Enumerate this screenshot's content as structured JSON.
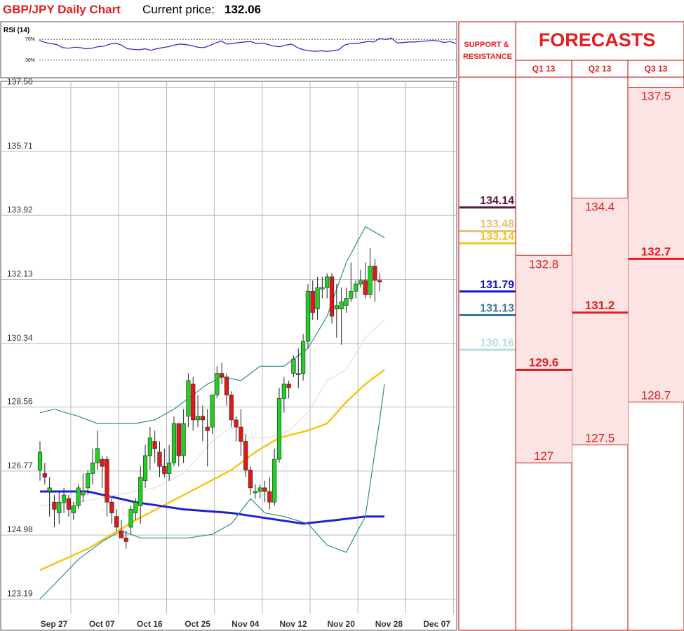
{
  "header": {
    "title": "GBP/JPY Daily Chart",
    "current_price_label": "Current price:",
    "current_price_value": "132.06"
  },
  "rsi": {
    "label": "RSI (14)",
    "levels": [
      "70%",
      "30%"
    ],
    "level_values": [
      70,
      30
    ],
    "values": [
      68,
      64,
      62,
      60,
      54,
      53,
      55,
      54,
      52,
      53,
      56,
      57,
      61,
      63,
      59,
      52,
      51,
      50,
      52,
      49,
      52,
      54,
      56,
      59,
      61,
      60,
      58,
      55,
      54,
      58,
      63,
      67,
      61,
      62,
      64,
      65,
      66,
      62,
      63,
      60,
      57,
      56,
      59,
      61,
      54,
      50,
      48,
      47,
      48,
      47,
      48,
      50,
      59,
      62,
      62,
      64,
      66,
      65,
      72,
      70,
      73,
      63,
      64,
      65,
      65,
      66,
      67,
      68,
      67,
      64,
      66,
      62
    ],
    "ylim": [
      0,
      100
    ]
  },
  "chart_data": {
    "type": "candlestick",
    "title": "GBP/JPY Daily Chart",
    "y_ticks": [
      137.5,
      135.71,
      133.92,
      132.13,
      130.34,
      128.56,
      126.77,
      124.98,
      123.19
    ],
    "y_tick_labels": [
      "137.50",
      "135.71",
      "133.92",
      "132.13",
      "130.34",
      "128.56",
      "126.77",
      "124.98",
      "123.19"
    ],
    "ylim": [
      123.19,
      137.5
    ],
    "x_labels": [
      "Sep 27",
      "Oct 07",
      "Oct 16",
      "Oct 25",
      "Nov 04",
      "Nov 12",
      "Nov 20",
      "Nov 28",
      "Dec 07"
    ],
    "x_label_index": [
      0,
      10,
      20,
      30,
      40,
      50,
      60,
      70,
      80
    ],
    "grid": true,
    "candles": [
      {
        "o": 126.8,
        "h": 127.6,
        "l": 126.5,
        "c": 127.3
      },
      {
        "o": 126.7,
        "h": 127.0,
        "l": 126.4,
        "c": 126.6
      },
      {
        "o": 126.2,
        "h": 126.6,
        "l": 125.5,
        "c": 126.3
      },
      {
        "o": 125.9,
        "h": 126.1,
        "l": 125.2,
        "c": 125.7
      },
      {
        "o": 125.6,
        "h": 126.2,
        "l": 125.3,
        "c": 125.9
      },
      {
        "o": 125.9,
        "h": 126.3,
        "l": 125.6,
        "c": 126.1
      },
      {
        "o": 126.0,
        "h": 126.1,
        "l": 125.5,
        "c": 125.7
      },
      {
        "o": 125.6,
        "h": 125.9,
        "l": 125.4,
        "c": 125.8
      },
      {
        "o": 125.8,
        "h": 126.4,
        "l": 125.7,
        "c": 126.3
      },
      {
        "o": 126.1,
        "h": 126.7,
        "l": 125.9,
        "c": 126.2
      },
      {
        "o": 126.3,
        "h": 126.8,
        "l": 126.1,
        "c": 126.7
      },
      {
        "o": 126.7,
        "h": 127.4,
        "l": 126.4,
        "c": 127.0
      },
      {
        "o": 127.0,
        "h": 127.9,
        "l": 126.8,
        "c": 127.4
      },
      {
        "o": 127.1,
        "h": 127.2,
        "l": 126.3,
        "c": 126.9
      },
      {
        "o": 127.1,
        "h": 127.2,
        "l": 125.5,
        "c": 125.9
      },
      {
        "o": 125.9,
        "h": 126.0,
        "l": 125.3,
        "c": 125.6
      },
      {
        "o": 125.5,
        "h": 125.7,
        "l": 125.1,
        "c": 125.2
      },
      {
        "o": 125.1,
        "h": 125.4,
        "l": 124.9,
        "c": 124.9
      },
      {
        "o": 124.9,
        "h": 125.1,
        "l": 124.6,
        "c": 124.8
      },
      {
        "o": 125.2,
        "h": 125.8,
        "l": 125.0,
        "c": 125.7
      },
      {
        "o": 125.6,
        "h": 126.0,
        "l": 125.4,
        "c": 125.9
      },
      {
        "o": 125.8,
        "h": 126.9,
        "l": 125.3,
        "c": 126.6
      },
      {
        "o": 126.5,
        "h": 127.5,
        "l": 126.3,
        "c": 127.2
      },
      {
        "o": 127.2,
        "h": 128.0,
        "l": 126.8,
        "c": 127.7
      },
      {
        "o": 127.6,
        "h": 127.9,
        "l": 127.0,
        "c": 127.4
      },
      {
        "o": 127.3,
        "h": 127.6,
        "l": 126.6,
        "c": 126.9
      },
      {
        "o": 126.9,
        "h": 127.4,
        "l": 126.6,
        "c": 126.7
      },
      {
        "o": 126.7,
        "h": 127.5,
        "l": 126.5,
        "c": 127.0
      },
      {
        "o": 127.0,
        "h": 128.3,
        "l": 126.9,
        "c": 128.1
      },
      {
        "o": 128.1,
        "h": 128.1,
        "l": 126.9,
        "c": 127.2
      },
      {
        "o": 127.2,
        "h": 128.5,
        "l": 127.0,
        "c": 128.1
      },
      {
        "o": 128.3,
        "h": 129.5,
        "l": 128.0,
        "c": 129.3
      },
      {
        "o": 129.2,
        "h": 129.4,
        "l": 127.9,
        "c": 128.2
      },
      {
        "o": 128.2,
        "h": 128.9,
        "l": 128.0,
        "c": 128.3
      },
      {
        "o": 128.3,
        "h": 128.6,
        "l": 127.6,
        "c": 128.2
      },
      {
        "o": 128.0,
        "h": 128.5,
        "l": 126.9,
        "c": 127.9
      },
      {
        "o": 128.0,
        "h": 128.9,
        "l": 127.8,
        "c": 128.9
      },
      {
        "o": 128.9,
        "h": 129.7,
        "l": 128.8,
        "c": 129.5
      },
      {
        "o": 129.5,
        "h": 129.8,
        "l": 129.2,
        "c": 129.4
      },
      {
        "o": 129.4,
        "h": 129.5,
        "l": 128.6,
        "c": 128.9
      },
      {
        "o": 128.9,
        "h": 129.0,
        "l": 128.0,
        "c": 128.2
      },
      {
        "o": 128.2,
        "h": 128.3,
        "l": 127.6,
        "c": 128.0
      },
      {
        "o": 128.0,
        "h": 128.5,
        "l": 127.2,
        "c": 127.6
      },
      {
        "o": 127.6,
        "h": 127.8,
        "l": 126.6,
        "c": 126.8
      },
      {
        "o": 126.8,
        "h": 126.9,
        "l": 126.1,
        "c": 126.3
      },
      {
        "o": 126.2,
        "h": 126.4,
        "l": 126.0,
        "c": 126.2
      },
      {
        "o": 126.2,
        "h": 126.4,
        "l": 126.0,
        "c": 126.3
      },
      {
        "o": 126.3,
        "h": 126.5,
        "l": 125.9,
        "c": 126.2
      },
      {
        "o": 126.2,
        "h": 126.6,
        "l": 125.7,
        "c": 125.9
      },
      {
        "o": 125.9,
        "h": 127.4,
        "l": 125.8,
        "c": 127.1
      },
      {
        "o": 127.1,
        "h": 129.1,
        "l": 127.0,
        "c": 128.8
      },
      {
        "o": 128.8,
        "h": 129.4,
        "l": 128.4,
        "c": 129.2
      },
      {
        "o": 129.2,
        "h": 129.3,
        "l": 128.8,
        "c": 129.1
      },
      {
        "o": 129.5,
        "h": 130.0,
        "l": 129.4,
        "c": 129.9
      },
      {
        "o": 129.5,
        "h": 130.2,
        "l": 129.1,
        "c": 129.5
      },
      {
        "o": 129.5,
        "h": 130.6,
        "l": 129.3,
        "c": 130.4
      },
      {
        "o": 130.4,
        "h": 132.0,
        "l": 130.2,
        "c": 131.8
      },
      {
        "o": 131.8,
        "h": 132.1,
        "l": 131.0,
        "c": 131.2
      },
      {
        "o": 131.3,
        "h": 132.2,
        "l": 131.0,
        "c": 131.9
      },
      {
        "o": 131.9,
        "h": 132.2,
        "l": 131.6,
        "c": 131.9
      },
      {
        "o": 131.9,
        "h": 132.3,
        "l": 131.6,
        "c": 132.2
      },
      {
        "o": 132.2,
        "h": 132.3,
        "l": 130.9,
        "c": 131.1
      },
      {
        "o": 131.3,
        "h": 132.0,
        "l": 130.5,
        "c": 131.4
      },
      {
        "o": 131.3,
        "h": 131.9,
        "l": 130.3,
        "c": 131.5
      },
      {
        "o": 131.4,
        "h": 131.9,
        "l": 131.2,
        "c": 131.6
      },
      {
        "o": 131.6,
        "h": 132.6,
        "l": 131.5,
        "c": 131.8
      },
      {
        "o": 131.8,
        "h": 132.1,
        "l": 131.6,
        "c": 132.0
      },
      {
        "o": 132.0,
        "h": 132.4,
        "l": 131.9,
        "c": 132.1
      },
      {
        "o": 132.1,
        "h": 132.6,
        "l": 131.6,
        "c": 131.7
      },
      {
        "o": 131.7,
        "h": 133.0,
        "l": 131.6,
        "c": 132.5
      },
      {
        "o": 132.5,
        "h": 132.7,
        "l": 131.5,
        "c": 132.1
      },
      {
        "o": 132.1,
        "h": 132.3,
        "l": 131.8,
        "c": 132.06
      }
    ],
    "series": [
      {
        "name": "",
        "color": "#f5c518",
        "points": [
          [
            0,
            124.0
          ],
          [
            10,
            124.6
          ],
          [
            20,
            125.4
          ],
          [
            30,
            126.1
          ],
          [
            40,
            126.8
          ],
          [
            45,
            127.3
          ],
          [
            50,
            127.7
          ],
          [
            56,
            127.9
          ],
          [
            60,
            128.1
          ],
          [
            64,
            128.7
          ],
          [
            68,
            129.2
          ],
          [
            72,
            129.6
          ]
        ]
      },
      {
        "name": "",
        "color": "#2020d0",
        "points": [
          [
            0,
            126.2
          ],
          [
            10,
            126.2
          ],
          [
            20,
            125.9
          ],
          [
            30,
            125.7
          ],
          [
            40,
            125.6
          ],
          [
            45,
            125.5
          ],
          [
            50,
            125.4
          ],
          [
            55,
            125.3
          ],
          [
            62,
            125.4
          ],
          [
            68,
            125.5
          ],
          [
            72,
            125.5
          ]
        ]
      },
      {
        "name": "",
        "color": "#2a8f8f",
        "points": [
          [
            0,
            128.4
          ],
          [
            3,
            128.5
          ],
          [
            8,
            128.3
          ],
          [
            12,
            128.1
          ],
          [
            16,
            128.1
          ],
          [
            20,
            128.1
          ],
          [
            24,
            128.2
          ],
          [
            28,
            128.5
          ],
          [
            32,
            128.9
          ],
          [
            35,
            129.2
          ],
          [
            38,
            129.4
          ],
          [
            42,
            129.3
          ],
          [
            46,
            129.7
          ],
          [
            51,
            129.7
          ],
          [
            56,
            130.2
          ],
          [
            60,
            131.1
          ],
          [
            64,
            132.6
          ],
          [
            68,
            133.6
          ],
          [
            72,
            133.3
          ]
        ]
      },
      {
        "name": "",
        "color": "#2a8f8f",
        "points": [
          [
            0,
            123.2
          ],
          [
            3,
            123.6
          ],
          [
            8,
            124.3
          ],
          [
            13,
            124.8
          ],
          [
            17,
            125.1
          ],
          [
            21,
            124.9
          ],
          [
            26,
            124.9
          ],
          [
            31,
            124.9
          ],
          [
            36,
            125.0
          ],
          [
            40,
            125.3
          ],
          [
            44,
            126.0
          ],
          [
            47,
            125.6
          ],
          [
            51,
            125.5
          ],
          [
            56,
            125.3
          ],
          [
            60,
            124.7
          ],
          [
            64,
            124.5
          ],
          [
            68,
            125.5
          ],
          [
            71,
            128.2
          ],
          [
            72,
            129.2
          ]
        ]
      },
      {
        "name": "",
        "color": "#d9d9d9",
        "points": [
          [
            0,
            125.8
          ],
          [
            8,
            125.9
          ],
          [
            16,
            126.1
          ],
          [
            24,
            126.3
          ],
          [
            30,
            126.7
          ],
          [
            36,
            127.6
          ],
          [
            40,
            128.0
          ],
          [
            44,
            127.7
          ],
          [
            48,
            127.7
          ],
          [
            52,
            127.9
          ],
          [
            56,
            128.4
          ],
          [
            60,
            129.3
          ],
          [
            64,
            129.6
          ],
          [
            68,
            130.5
          ],
          [
            72,
            131.0
          ]
        ]
      }
    ]
  },
  "support_resistance": {
    "header": "SUPPORT & RESISTANCE",
    "levels": [
      {
        "label": "134.14",
        "value": 134.14,
        "color": "#5a1640"
      },
      {
        "label": "133.48",
        "value": 133.48,
        "color": "#e8c07a"
      },
      {
        "label": "133.14",
        "value": 133.14,
        "color": "#f5c518"
      },
      {
        "label": "131.79",
        "value": 131.79,
        "color": "#1414c8"
      },
      {
        "label": "131.13",
        "value": 131.13,
        "color": "#3a78a0"
      },
      {
        "label": "130.16",
        "value": 130.16,
        "color": "#b7dde0"
      }
    ]
  },
  "forecasts": {
    "title": "FORECASTS",
    "columns": [
      {
        "label": "Q1 13",
        "high": "132.8",
        "high_value": 132.8,
        "mid": "129.6",
        "mid_value": 129.6,
        "low": "127",
        "low_value": 127.0
      },
      {
        "label": "Q2 13",
        "high": "134.4",
        "high_value": 134.4,
        "mid": "131.2",
        "mid_value": 131.2,
        "low": "127.5",
        "low_value": 127.5
      },
      {
        "label": "Q3 13",
        "high": "137.5",
        "high_value": 137.5,
        "mid": "132.7",
        "mid_value": 132.7,
        "low": "128.7",
        "low_value": 128.7
      }
    ]
  }
}
